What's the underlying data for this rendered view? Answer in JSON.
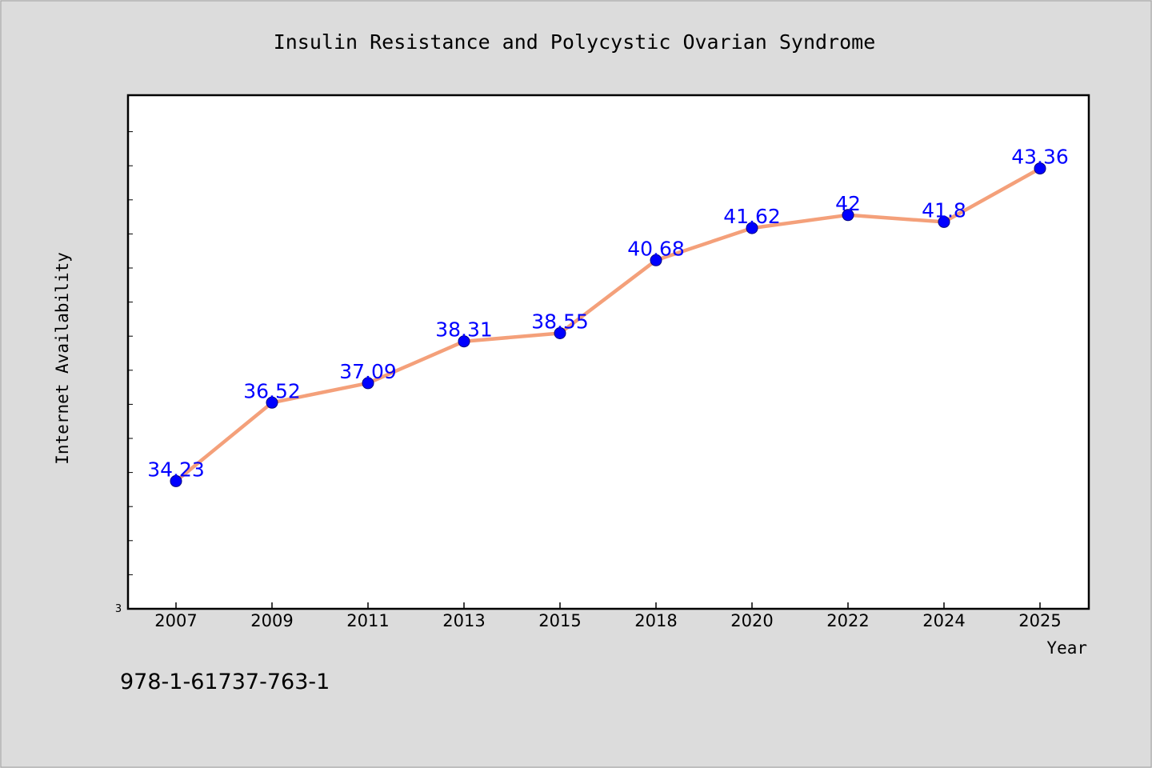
{
  "chart_data": {
    "type": "line",
    "title": "Insulin Resistance and Polycystic Ovarian Syndrome",
    "xlabel": "Year",
    "ylabel": "Internet Availability",
    "categories": [
      "2007",
      "2009",
      "2011",
      "2013",
      "2015",
      "2018",
      "2020",
      "2022",
      "2024",
      "2025"
    ],
    "series": [
      {
        "values": [
          34.23,
          36.52,
          37.09,
          38.31,
          38.55,
          40.68,
          41.62,
          42,
          41.8,
          43.36
        ],
        "labels": [
          "34.23",
          "36.52",
          "37.09",
          "38.31",
          "38.55",
          "40.68",
          "41.62",
          "42",
          "41.8",
          "43.36"
        ]
      }
    ],
    "y_min_label": "3",
    "ylim": [
      30.5,
      45.5
    ],
    "grid": false,
    "line_color": "#f4a07a",
    "marker_color": "#0000ff",
    "label_color": "#0000ff"
  },
  "caption": "978-1-61737-763-1"
}
